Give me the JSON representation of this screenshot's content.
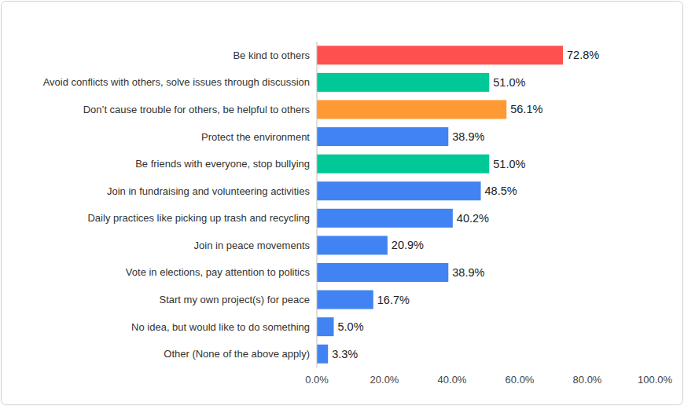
{
  "chart_data": {
    "type": "bar",
    "orientation": "horizontal",
    "categories": [
      "Be kind to others",
      "Avoid conflicts with others, solve issues through discussion",
      "Don’t cause trouble for others, be helpful to others",
      "Protect the environment",
      "Be friends with everyone, stop bullying",
      "Join in fundraising and volunteering activities",
      "Daily practices like picking up trash and recycling",
      "Join in peace movements",
      "Vote in elections, pay attention to politics",
      "Start my own project(s) for peace",
      "No idea, but would like to do something",
      "Other (None of the above apply)"
    ],
    "values": [
      72.8,
      51.0,
      56.1,
      38.9,
      51.0,
      48.5,
      40.2,
      20.9,
      38.9,
      16.7,
      5.0,
      3.3
    ],
    "value_labels": [
      "72.8%",
      "51.0%",
      "56.1%",
      "38.9%",
      "51.0%",
      "48.5%",
      "40.2%",
      "20.9%",
      "38.9%",
      "16.7%",
      "5.0%",
      "3.3%"
    ],
    "colors": [
      "#ff5050",
      "#00c896",
      "#ff9933",
      "#4183f2",
      "#00c896",
      "#4183f2",
      "#4183f2",
      "#4183f2",
      "#4183f2",
      "#4183f2",
      "#4183f2",
      "#4183f2"
    ],
    "xlim": [
      0,
      100
    ],
    "xticks": [
      {
        "value": 0,
        "label": "0.0%"
      },
      {
        "value": 20,
        "label": "20.0%"
      },
      {
        "value": 40,
        "label": "40.0%"
      },
      {
        "value": 60,
        "label": "60.0%"
      },
      {
        "value": 80,
        "label": "80.0%"
      },
      {
        "value": 100,
        "label": "100.0%"
      }
    ],
    "grid": false,
    "data_labels": true
  }
}
